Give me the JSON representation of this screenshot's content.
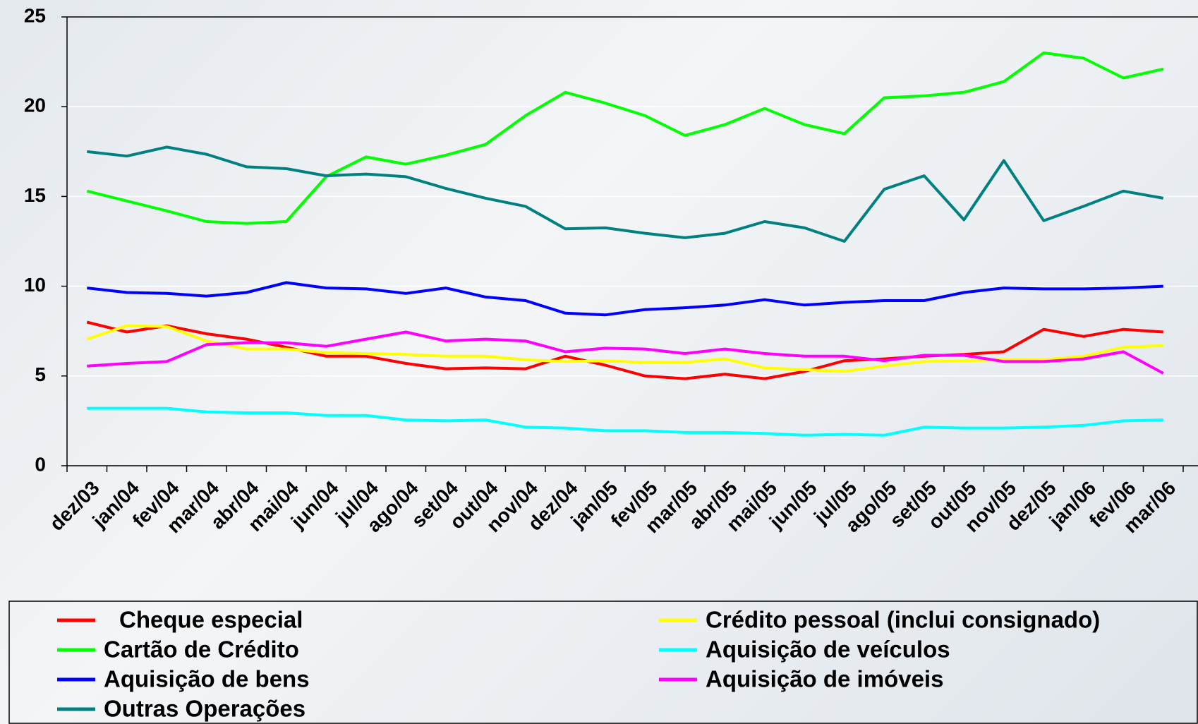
{
  "chart_data": {
    "type": "line",
    "categories": [
      "dez/03",
      "jan/04",
      "fev/04",
      "mar/04",
      "abr/04",
      "mai/04",
      "jun/04",
      "jul/04",
      "ago/04",
      "set/04",
      "out/04",
      "nov/04",
      "dez/04",
      "jan/05",
      "fev/05",
      "mar/05",
      "abr/05",
      "mai/05",
      "jun/05",
      "jul/05",
      "ago/05",
      "set/05",
      "out/05",
      "nov/05",
      "dez/05",
      "jan/06",
      "fev/06",
      "mar/06"
    ],
    "series": [
      {
        "name": "Cheque especial",
        "color": "#ff0000",
        "values": [
          8.0,
          7.45,
          7.8,
          7.35,
          7.05,
          6.6,
          6.1,
          6.1,
          5.7,
          5.4,
          5.45,
          5.4,
          6.1,
          5.6,
          5.0,
          4.85,
          5.1,
          4.85,
          5.25,
          5.85,
          5.95,
          6.1,
          6.2,
          6.35,
          7.6,
          7.2,
          7.6,
          7.45
        ]
      },
      {
        "name": "Cartão de Crédito",
        "color": "#00ff00",
        "values": [
          15.3,
          14.75,
          14.2,
          13.6,
          13.5,
          13.6,
          16.1,
          17.2,
          16.8,
          17.3,
          17.9,
          19.5,
          20.8,
          20.2,
          19.5,
          18.4,
          19.0,
          19.9,
          19.0,
          18.5,
          20.5,
          20.6,
          20.8,
          21.4,
          23.0,
          22.7,
          21.6,
          22.1
        ]
      },
      {
        "name": "Aquisição de bens",
        "color": "#0000ff",
        "values": [
          9.9,
          9.65,
          9.6,
          9.45,
          9.65,
          10.2,
          9.9,
          9.85,
          9.6,
          9.9,
          9.4,
          9.2,
          8.5,
          8.4,
          8.7,
          8.8,
          8.95,
          9.25,
          8.95,
          9.1,
          9.2,
          9.2,
          9.65,
          9.9,
          9.85,
          9.85,
          9.9,
          10.0
        ]
      },
      {
        "name": "Outras Operações",
        "color": "#008080",
        "values": [
          17.5,
          17.25,
          17.75,
          17.35,
          16.65,
          16.55,
          16.15,
          16.25,
          16.1,
          15.45,
          14.9,
          14.45,
          13.2,
          13.25,
          12.95,
          12.7,
          12.95,
          13.6,
          13.25,
          12.5,
          15.4,
          16.15,
          13.7,
          17.0,
          13.65,
          14.45,
          15.3,
          14.9
        ]
      },
      {
        "name": "Crédito pessoal (inclui consignado)",
        "color": "#ffff00",
        "values": [
          7.05,
          7.8,
          7.75,
          6.95,
          6.5,
          6.5,
          6.3,
          6.25,
          6.2,
          6.1,
          6.1,
          5.9,
          5.8,
          5.85,
          5.75,
          5.75,
          5.95,
          5.45,
          5.35,
          5.25,
          5.55,
          5.8,
          5.85,
          5.9,
          5.9,
          6.1,
          6.6,
          6.7
        ]
      },
      {
        "name": "Aquisição de veículos",
        "color": "#00ffff",
        "values": [
          3.2,
          3.2,
          3.2,
          3.0,
          2.95,
          2.95,
          2.8,
          2.8,
          2.55,
          2.5,
          2.55,
          2.15,
          2.1,
          1.95,
          1.95,
          1.85,
          1.85,
          1.8,
          1.7,
          1.75,
          1.7,
          2.15,
          2.1,
          2.1,
          2.15,
          2.25,
          2.5,
          2.55
        ]
      },
      {
        "name": "Aquisição de imóveis",
        "color": "#ff00ff",
        "values": [
          5.55,
          5.7,
          5.8,
          6.75,
          6.85,
          6.85,
          6.65,
          7.05,
          7.45,
          6.95,
          7.05,
          6.95,
          6.35,
          6.55,
          6.5,
          6.25,
          6.5,
          6.25,
          6.1,
          6.1,
          5.85,
          6.15,
          6.15,
          5.8,
          5.8,
          5.95,
          6.35,
          5.15
        ]
      }
    ],
    "ylim": [
      0,
      25
    ],
    "yticks": [
      0,
      5,
      10,
      15,
      20,
      25
    ],
    "grid": true
  }
}
